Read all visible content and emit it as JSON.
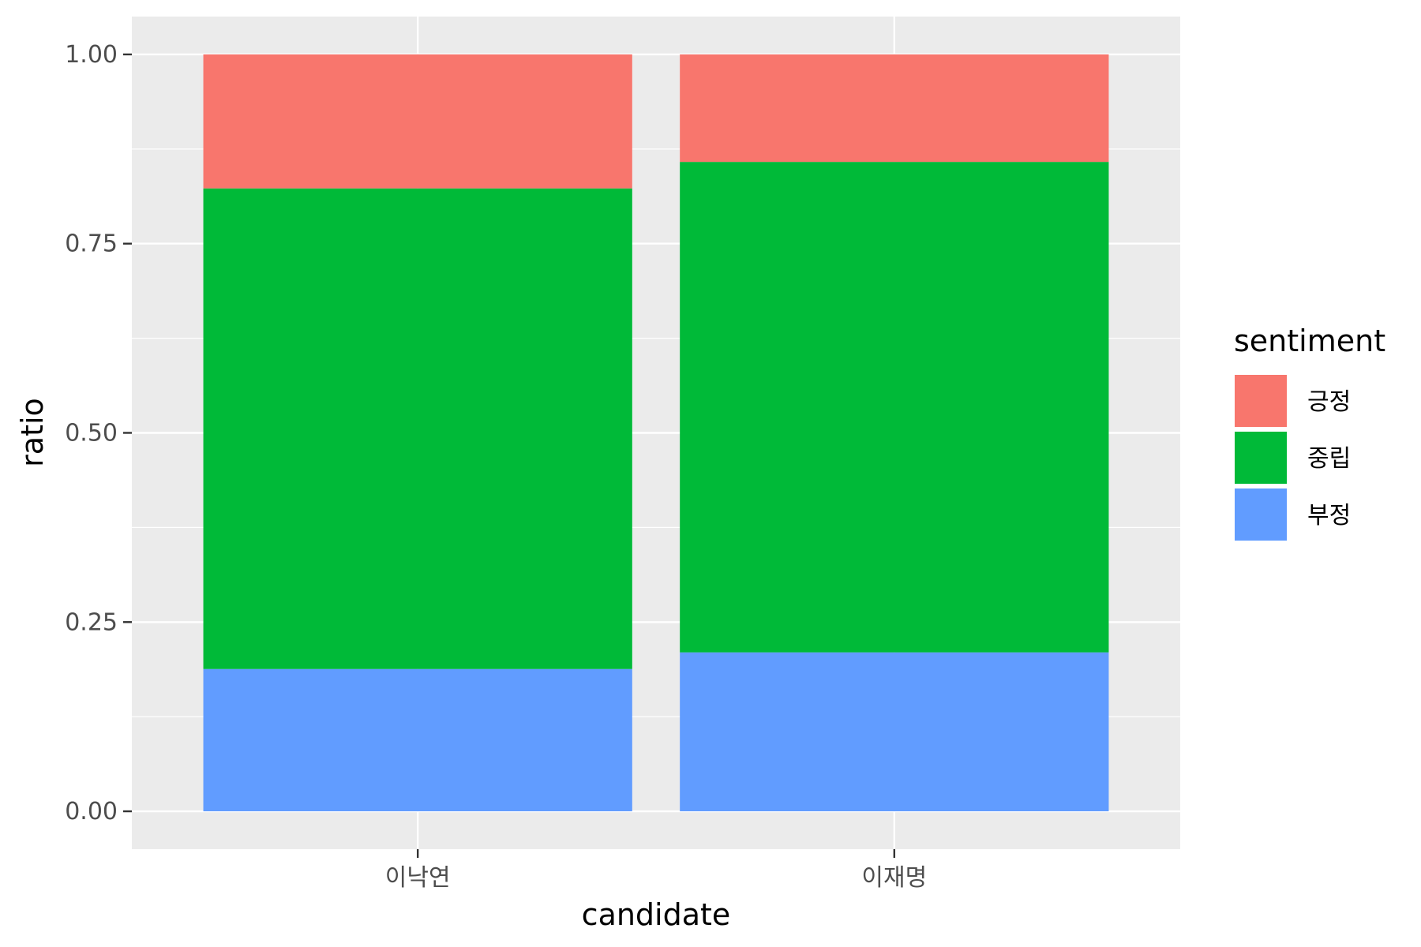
{
  "chart_data": {
    "type": "bar",
    "stacked": true,
    "categories": [
      "이낙연",
      "이재명"
    ],
    "series": [
      {
        "name": "긍정",
        "color": "#F8766D",
        "values": [
          0.177,
          0.142
        ]
      },
      {
        "name": "중립",
        "color": "#00BA38",
        "values": [
          0.635,
          0.648
        ]
      },
      {
        "name": "부정",
        "color": "#619CFF",
        "values": [
          0.188,
          0.21
        ]
      }
    ],
    "stack_order_bottom_to_top": [
      "부정",
      "중립",
      "긍정"
    ],
    "xlabel": "candidate",
    "ylabel": "ratio",
    "ylim": [
      -0.05,
      1.05
    ],
    "yticks": [
      0.0,
      0.25,
      0.5,
      0.75,
      1.0
    ],
    "ytick_labels": [
      "0.00",
      "0.25",
      "0.50",
      "0.75",
      "1.00"
    ],
    "legend": {
      "title": "sentiment",
      "position": "right"
    },
    "grid": true,
    "panel_background": "#EBEBEB"
  }
}
